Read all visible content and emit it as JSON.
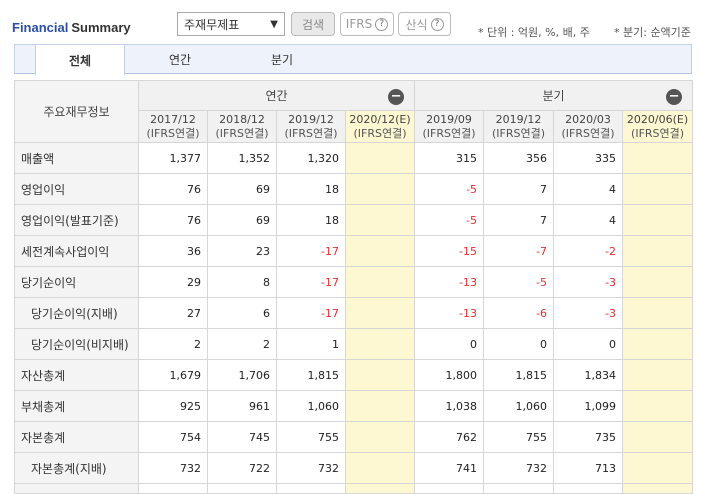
{
  "header": {
    "title_blue": "Financial",
    "title_dark": "Summary",
    "select_value": "주재무제표",
    "search_label": "검색",
    "ifrs_label": "IFRS",
    "calc_label": "산식",
    "help_glyph": "?",
    "unit_note": "* 단위 : 억원, %, 배, 주",
    "quarter_note": "* 분기: 순액기준"
  },
  "tabs": [
    {
      "label": "전체",
      "active": true
    },
    {
      "label": "연간",
      "active": false
    },
    {
      "label": "분기",
      "active": false
    }
  ],
  "table": {
    "corner_label": "주요재무정보",
    "annual_label": "연간",
    "quarter_label": "분기",
    "columns": [
      {
        "period": "2017/12",
        "basis": "(IFRS연결)"
      },
      {
        "period": "2018/12",
        "basis": "(IFRS연결)"
      },
      {
        "period": "2019/12",
        "basis": "(IFRS연결)"
      },
      {
        "period": "2020/12(E)",
        "basis": "(IFRS연결)"
      },
      {
        "period": "2019/09",
        "basis": "(IFRS연결)"
      },
      {
        "period": "2019/12",
        "basis": "(IFRS연결)"
      },
      {
        "period": "2020/03",
        "basis": "(IFRS연결)"
      },
      {
        "period": "2020/06(E)",
        "basis": "(IFRS연결)"
      }
    ],
    "rows": [
      {
        "label": "매출액",
        "values": [
          "1,377",
          "1,352",
          "1,320",
          "",
          "315",
          "356",
          "335",
          ""
        ]
      },
      {
        "label": "영업이익",
        "values": [
          "76",
          "69",
          "18",
          "",
          "-5",
          "7",
          "4",
          ""
        ]
      },
      {
        "label": "영업이익(발표기준)",
        "values": [
          "76",
          "69",
          "18",
          "",
          "-5",
          "7",
          "4",
          ""
        ]
      },
      {
        "label": "세전계속사업이익",
        "values": [
          "36",
          "23",
          "-17",
          "",
          "-15",
          "-7",
          "-2",
          ""
        ]
      },
      {
        "label": "당기순이익",
        "values": [
          "29",
          "8",
          "-17",
          "",
          "-13",
          "-5",
          "-3",
          ""
        ]
      },
      {
        "label": "당기순이익(지배)",
        "values": [
          "27",
          "6",
          "-17",
          "",
          "-13",
          "-6",
          "-3",
          ""
        ]
      },
      {
        "label": "당기순이익(비지배)",
        "values": [
          "2",
          "2",
          "1",
          "",
          "0",
          "0",
          "0",
          ""
        ]
      },
      {
        "label": "자산총계",
        "values": [
          "1,679",
          "1,706",
          "1,815",
          "",
          "1,800",
          "1,815",
          "1,834",
          ""
        ]
      },
      {
        "label": "부채총계",
        "values": [
          "925",
          "961",
          "1,060",
          "",
          "1,038",
          "1,060",
          "1,099",
          ""
        ]
      },
      {
        "label": "자본총계",
        "values": [
          "754",
          "745",
          "755",
          "",
          "762",
          "755",
          "735",
          ""
        ]
      },
      {
        "label": "자본총계(지배)",
        "values": [
          "732",
          "722",
          "732",
          "",
          "741",
          "732",
          "713",
          ""
        ]
      }
    ]
  }
}
